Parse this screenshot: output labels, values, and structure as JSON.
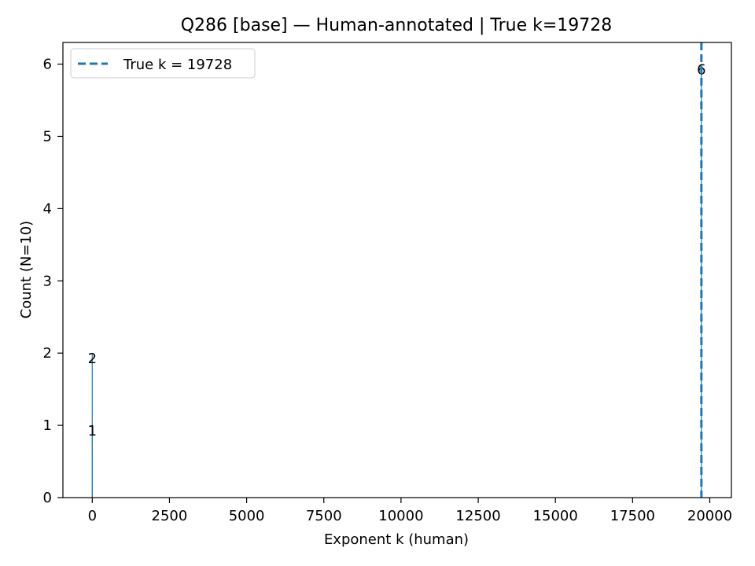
{
  "chart_data": {
    "type": "bar",
    "title": "Q286 [base] — Human-annotated | True k=19728",
    "xlabel": "Exponent k (human)",
    "ylabel": "Count (N=10)",
    "xlim": [
      -950,
      20700
    ],
    "ylim": [
      0,
      6.3
    ],
    "xticks": [
      0,
      2500,
      5000,
      7500,
      10000,
      12500,
      15000,
      17500,
      20000
    ],
    "yticks": [
      0,
      1,
      2,
      3,
      4,
      5,
      6
    ],
    "bars": [
      {
        "x": 0,
        "value": 2
      },
      {
        "x": 1,
        "value": 1
      },
      {
        "x": 19728,
        "value": 6
      }
    ],
    "bar_color": "#1f77b4",
    "reference_line": {
      "x": 19728,
      "label": "True k = 19728",
      "color": "#1f77b4",
      "style": "dashed"
    },
    "legend": {
      "position": "top-left",
      "entries": [
        "True k = 19728"
      ]
    },
    "grid": false
  }
}
